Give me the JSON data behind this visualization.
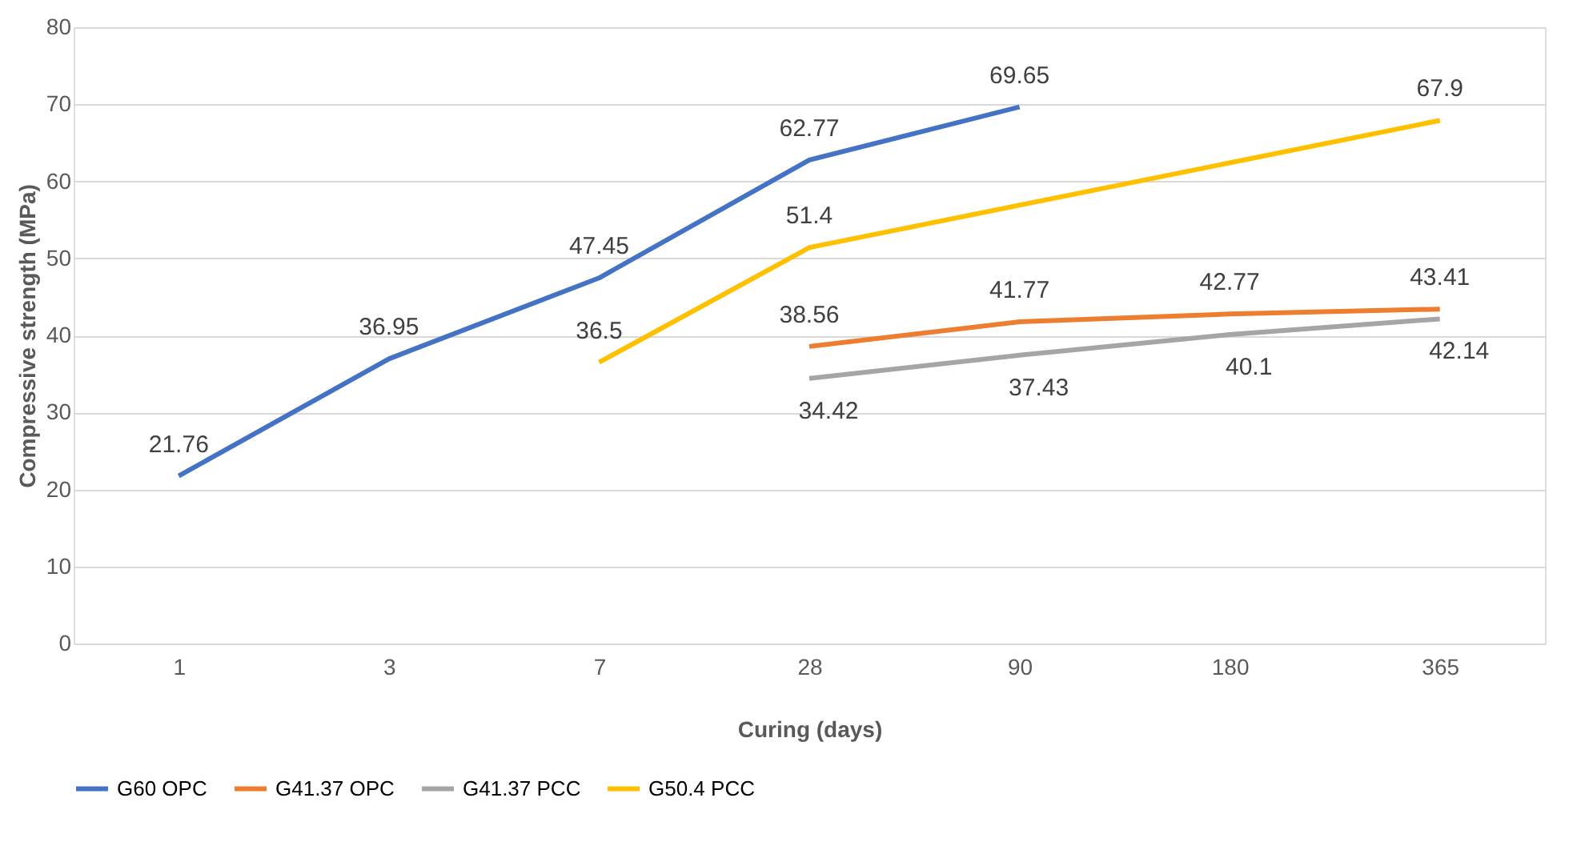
{
  "chart_data": {
    "type": "line",
    "xlabel": "Curing (days)",
    "ylabel": "Compressive strength (MPa)",
    "categories": [
      "1",
      "3",
      "7",
      "28",
      "90",
      "180",
      "365"
    ],
    "series": [
      {
        "name": "G60 OPC",
        "color": "#4472c4",
        "values": [
          21.76,
          36.95,
          47.45,
          62.77,
          69.65,
          null,
          null
        ]
      },
      {
        "name": "G41.37 OPC",
        "color": "#ed7d31",
        "values": [
          null,
          null,
          null,
          38.56,
          41.77,
          42.77,
          43.41
        ]
      },
      {
        "name": "G41.37 PCC",
        "color": "#a5a5a5",
        "values": [
          null,
          null,
          null,
          34.42,
          37.43,
          40.1,
          42.14
        ]
      },
      {
        "name": "G50.4 PCC",
        "color": "#ffc000",
        "values": [
          null,
          null,
          36.5,
          51.4,
          null,
          null,
          67.9
        ]
      }
    ],
    "ylim": [
      0,
      80
    ],
    "yticks": [
      0,
      10,
      20,
      30,
      40,
      50,
      60,
      70,
      80
    ],
    "grid": "y",
    "legend": "bottom",
    "data_labels": true,
    "marker": "none",
    "line_style": "solid"
  }
}
